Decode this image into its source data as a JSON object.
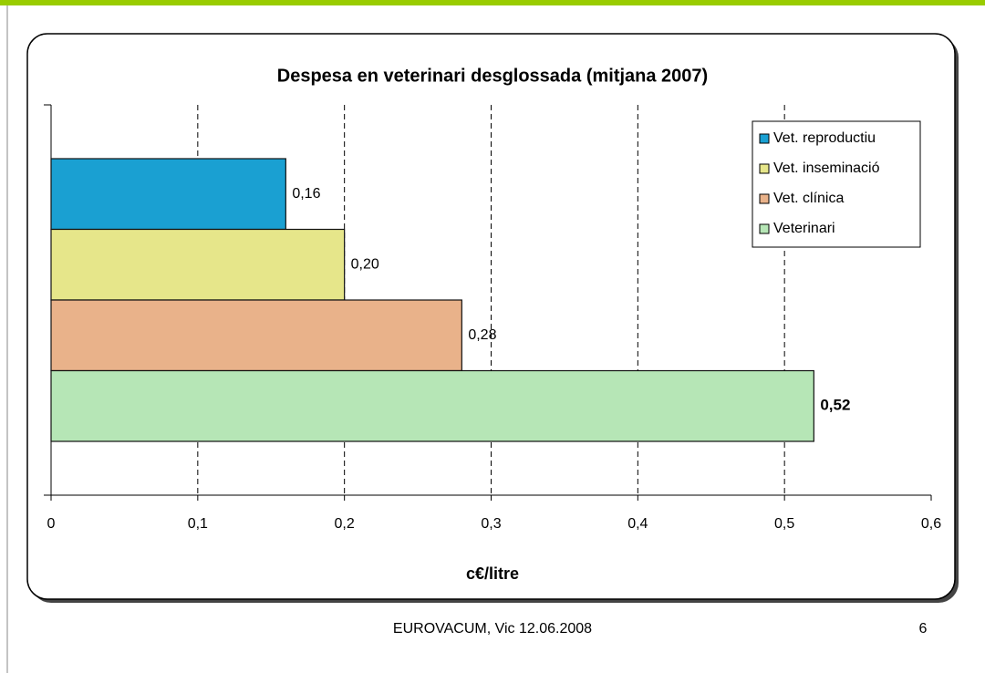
{
  "chart_data": {
    "type": "hbar",
    "title": "Despesa en veterinari desglossada (mitjana 2007)",
    "x_label": "c€/litre",
    "series": [
      {
        "name": "Vet. reproductiu",
        "color": "#1aa0d2",
        "values": [
          0.16
        ],
        "value_labels": [
          "0,16"
        ]
      },
      {
        "name": "Vet. inseminació",
        "color": "#e6e68a",
        "values": [
          0.2
        ],
        "value_labels": [
          "0,20"
        ]
      },
      {
        "name": "Vet. clínica",
        "color": "#e9b28a",
        "values": [
          0.28
        ],
        "value_labels": [
          "0,28"
        ]
      },
      {
        "name": "Veterinari",
        "color": "#b6e6b6",
        "values": [
          0.52
        ],
        "value_labels": [
          "0,52"
        ],
        "bold_label": true
      }
    ],
    "xlim": [
      0,
      0.6
    ],
    "xticks": [
      0,
      {
        "value": 0.1,
        "label": "0,1"
      },
      {
        "value": 0.2,
        "label": "0,2"
      },
      {
        "value": 0.3,
        "label": "0,3"
      },
      {
        "value": 0.4,
        "label": "0,4"
      },
      {
        "value": 0.5,
        "label": "0,5"
      },
      {
        "value": 0.6,
        "label": "0,6"
      }
    ],
    "grid": true,
    "legend": "top-right"
  },
  "footer": {
    "text": "EUROVACUM, Vic 12.06.2008",
    "page": "6"
  }
}
